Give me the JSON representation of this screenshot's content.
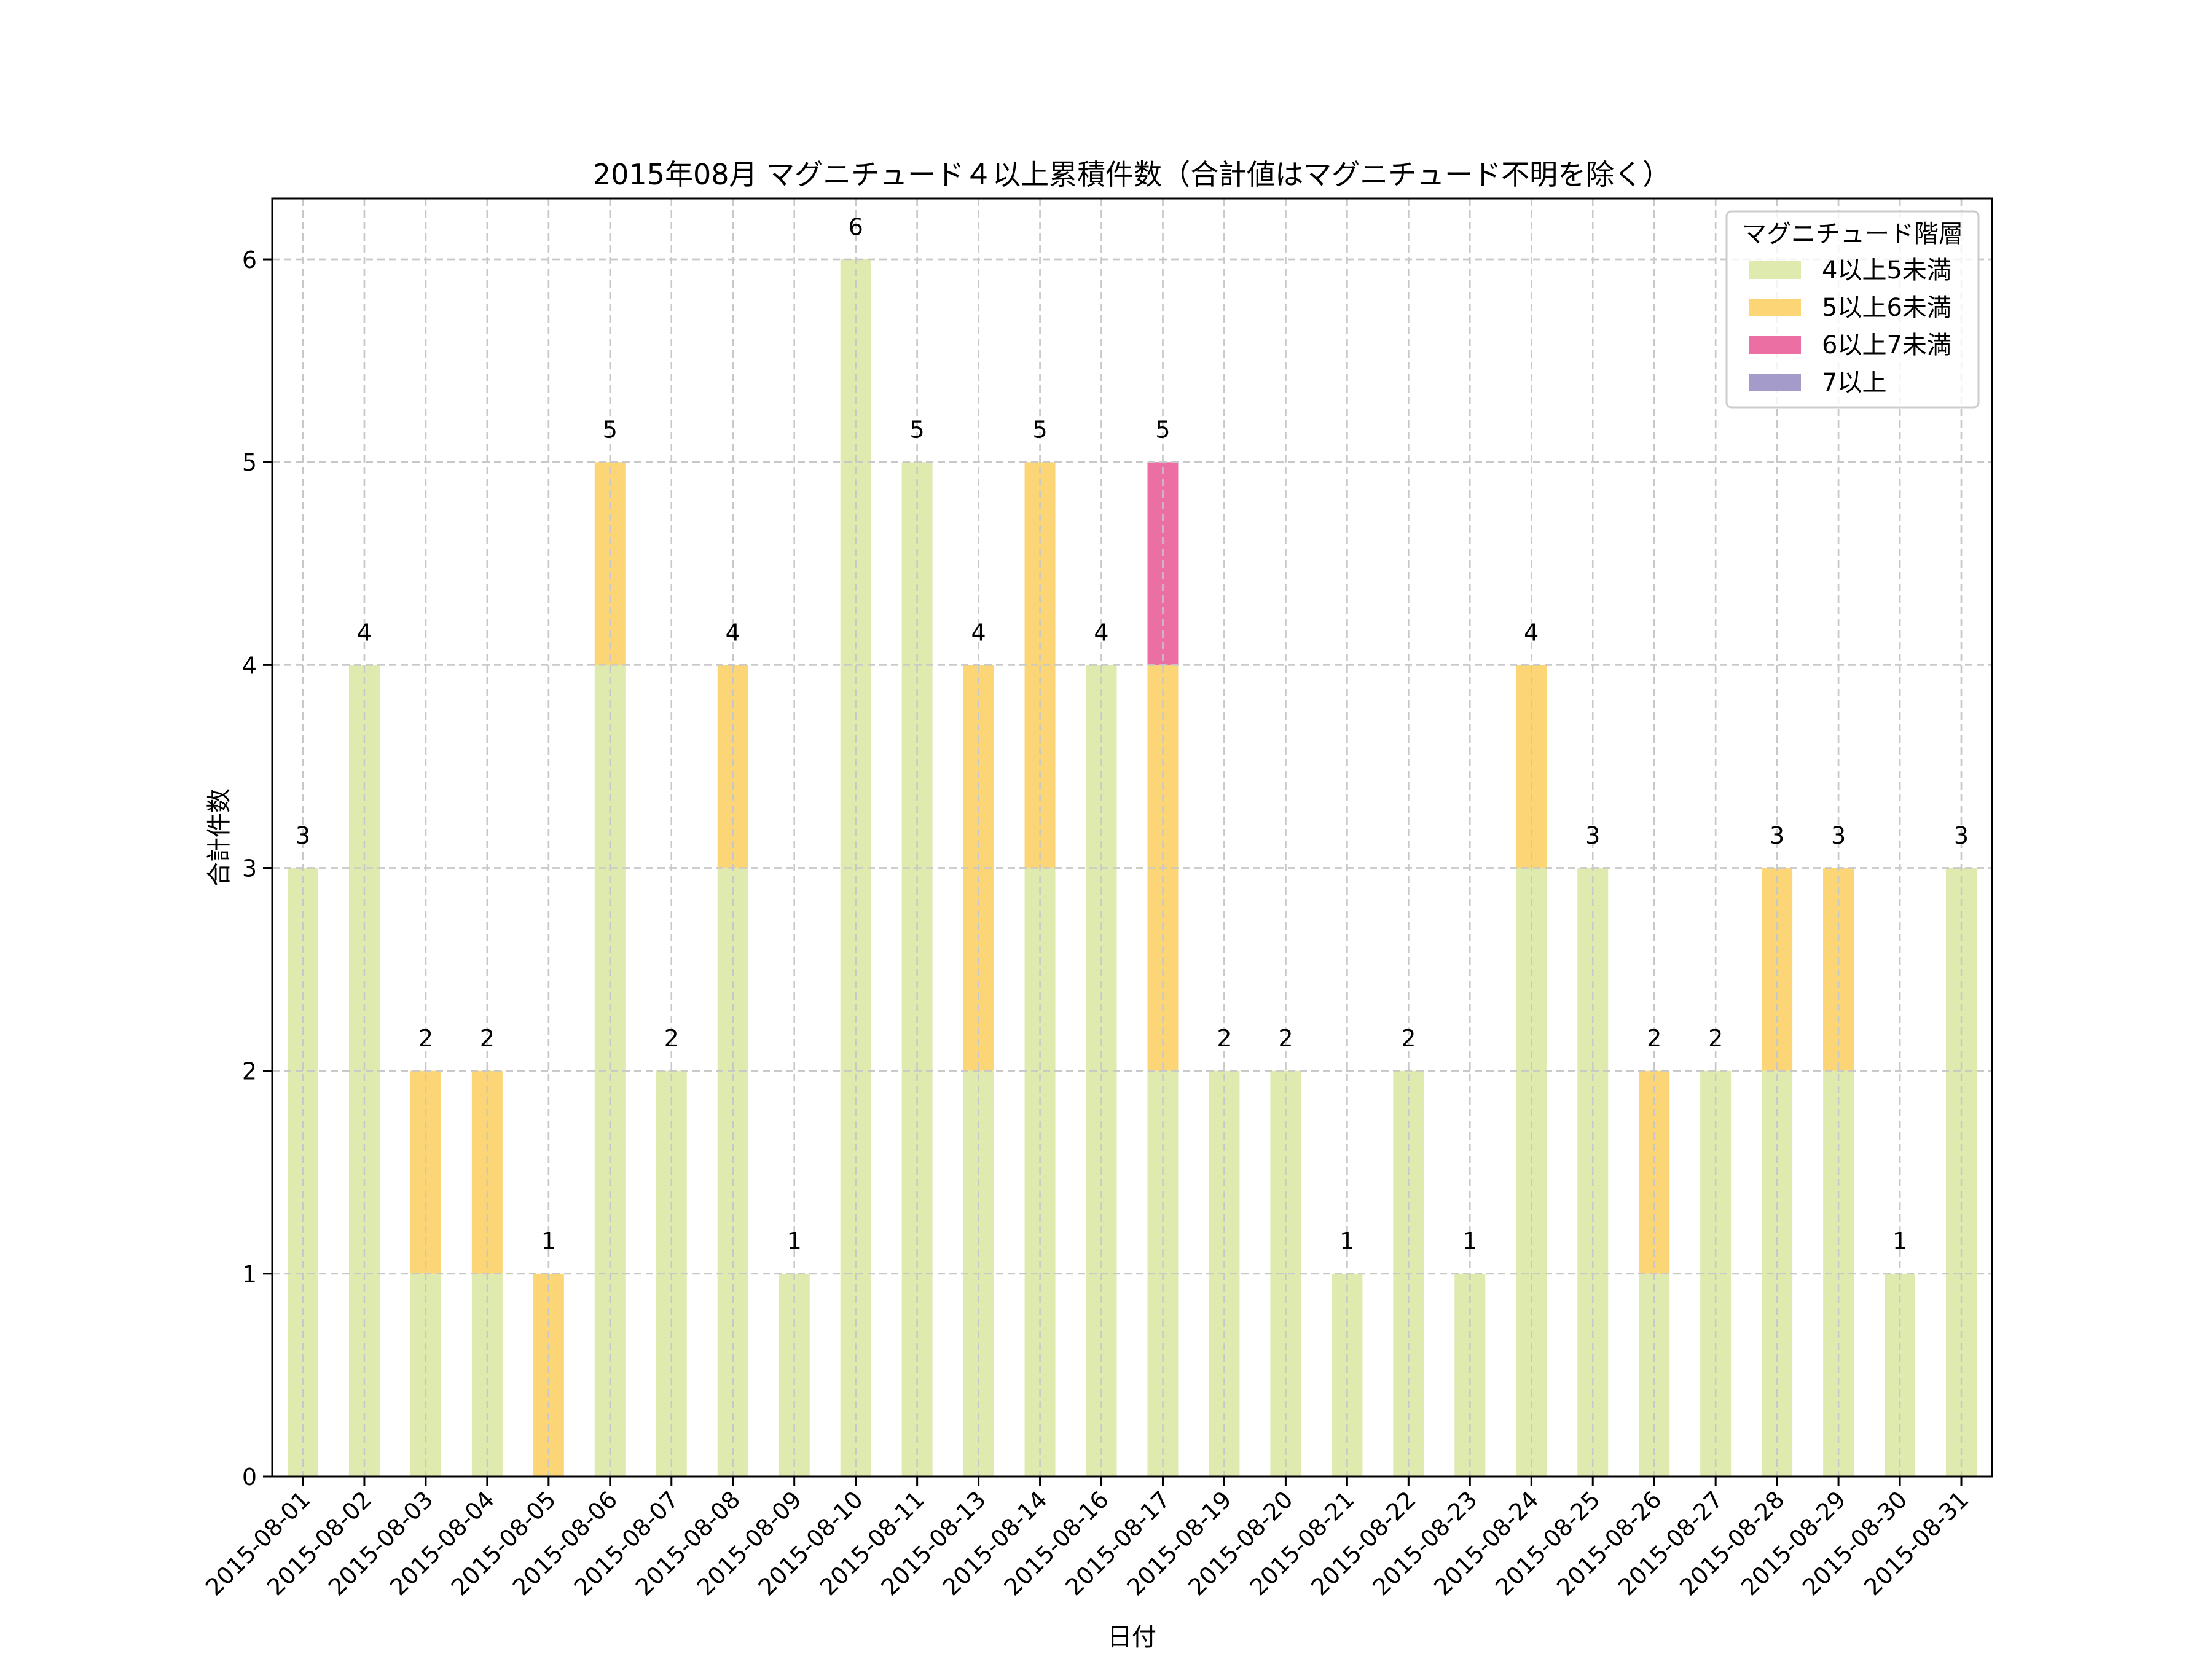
{
  "chart_data": {
    "type": "bar",
    "stacked": true,
    "title": "2015年08月 マグニチュード４以上累積件数（合計値はマグニチュード不明を除く）",
    "xlabel": "日付",
    "ylabel": "合計件数",
    "ylim": [
      0,
      6.3
    ],
    "yticks": [
      0,
      1,
      2,
      3,
      4,
      5,
      6
    ],
    "grid": true,
    "legend": {
      "title": "マグニチュード階層",
      "placement": "top-right"
    },
    "categories": [
      "2015-08-01",
      "2015-08-02",
      "2015-08-03",
      "2015-08-04",
      "2015-08-05",
      "2015-08-06",
      "2015-08-07",
      "2015-08-08",
      "2015-08-09",
      "2015-08-10",
      "2015-08-11",
      "2015-08-13",
      "2015-08-14",
      "2015-08-16",
      "2015-08-17",
      "2015-08-19",
      "2015-08-20",
      "2015-08-21",
      "2015-08-22",
      "2015-08-23",
      "2015-08-24",
      "2015-08-25",
      "2015-08-26",
      "2015-08-27",
      "2015-08-28",
      "2015-08-29",
      "2015-08-30",
      "2015-08-31"
    ],
    "series": [
      {
        "name": "4以上5未満",
        "color": "#dfeaae",
        "values": [
          3,
          4,
          1,
          1,
          0,
          4,
          2,
          3,
          1,
          6,
          5,
          2,
          3,
          4,
          2,
          2,
          2,
          1,
          2,
          1,
          3,
          3,
          1,
          2,
          2,
          2,
          1,
          3
        ]
      },
      {
        "name": "5以上6未満",
        "color": "#fbd576",
        "values": [
          0,
          0,
          1,
          1,
          1,
          1,
          0,
          1,
          0,
          0,
          0,
          2,
          2,
          0,
          2,
          0,
          0,
          0,
          0,
          0,
          1,
          0,
          1,
          0,
          1,
          1,
          0,
          0
        ]
      },
      {
        "name": "6以上7未満",
        "color": "#ec6fa3",
        "values": [
          0,
          0,
          0,
          0,
          0,
          0,
          0,
          0,
          0,
          0,
          0,
          0,
          0,
          0,
          1,
          0,
          0,
          0,
          0,
          0,
          0,
          0,
          0,
          0,
          0,
          0,
          0,
          0
        ]
      },
      {
        "name": "7以上",
        "color": "#a59bca",
        "values": [
          0,
          0,
          0,
          0,
          0,
          0,
          0,
          0,
          0,
          0,
          0,
          0,
          0,
          0,
          0,
          0,
          0,
          0,
          0,
          0,
          0,
          0,
          0,
          0,
          0,
          0,
          0,
          0
        ]
      }
    ],
    "totals": [
      3,
      4,
      2,
      2,
      1,
      5,
      2,
      4,
      1,
      6,
      5,
      4,
      5,
      4,
      5,
      2,
      2,
      1,
      2,
      1,
      4,
      3,
      2,
      2,
      3,
      3,
      1,
      3
    ]
  }
}
